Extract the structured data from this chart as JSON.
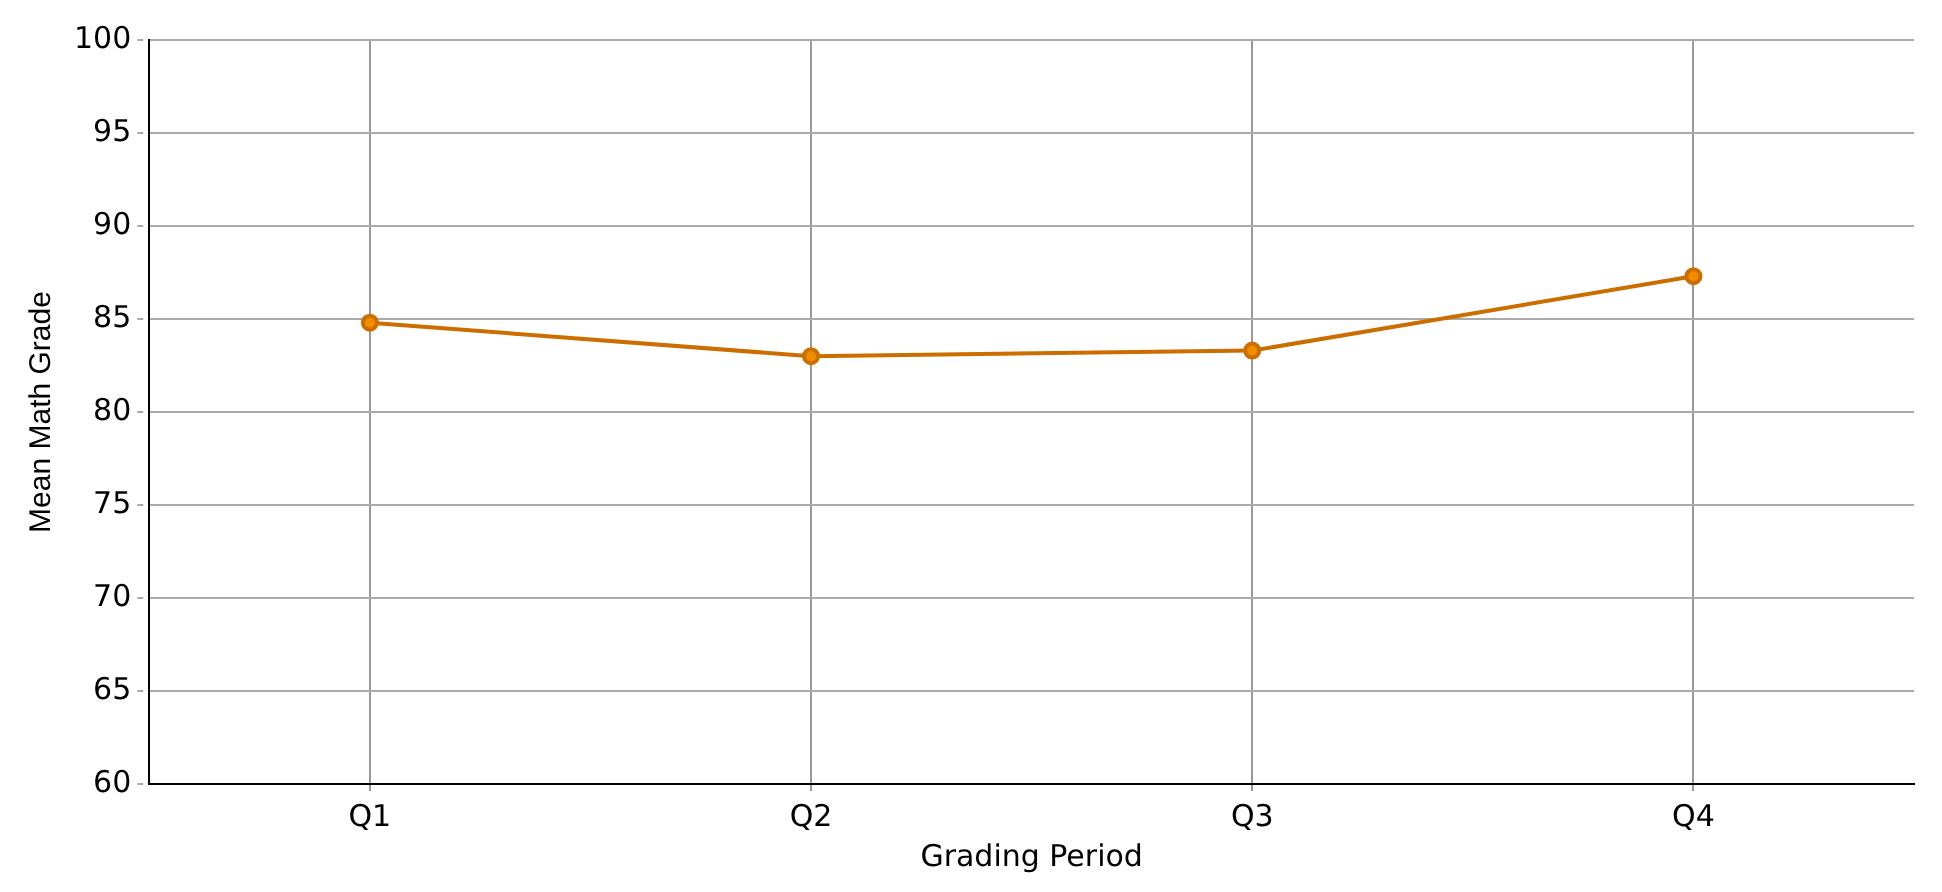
{
  "chart_data": {
    "type": "line",
    "xlabel": "Grading Period",
    "ylabel": "Mean Math Grade",
    "categories": [
      "Q1",
      "Q2",
      "Q3",
      "Q4"
    ],
    "series": [
      {
        "color": "#cc6d00",
        "values": [
          84.8,
          83.0,
          83.3,
          87.3
        ]
      }
    ],
    "ylim": [
      60,
      100
    ],
    "yticks": [
      60,
      65,
      70,
      75,
      80,
      85,
      90,
      95,
      100
    ],
    "grid": true,
    "marker": "circle",
    "line_style": "solid",
    "legend": false
  }
}
